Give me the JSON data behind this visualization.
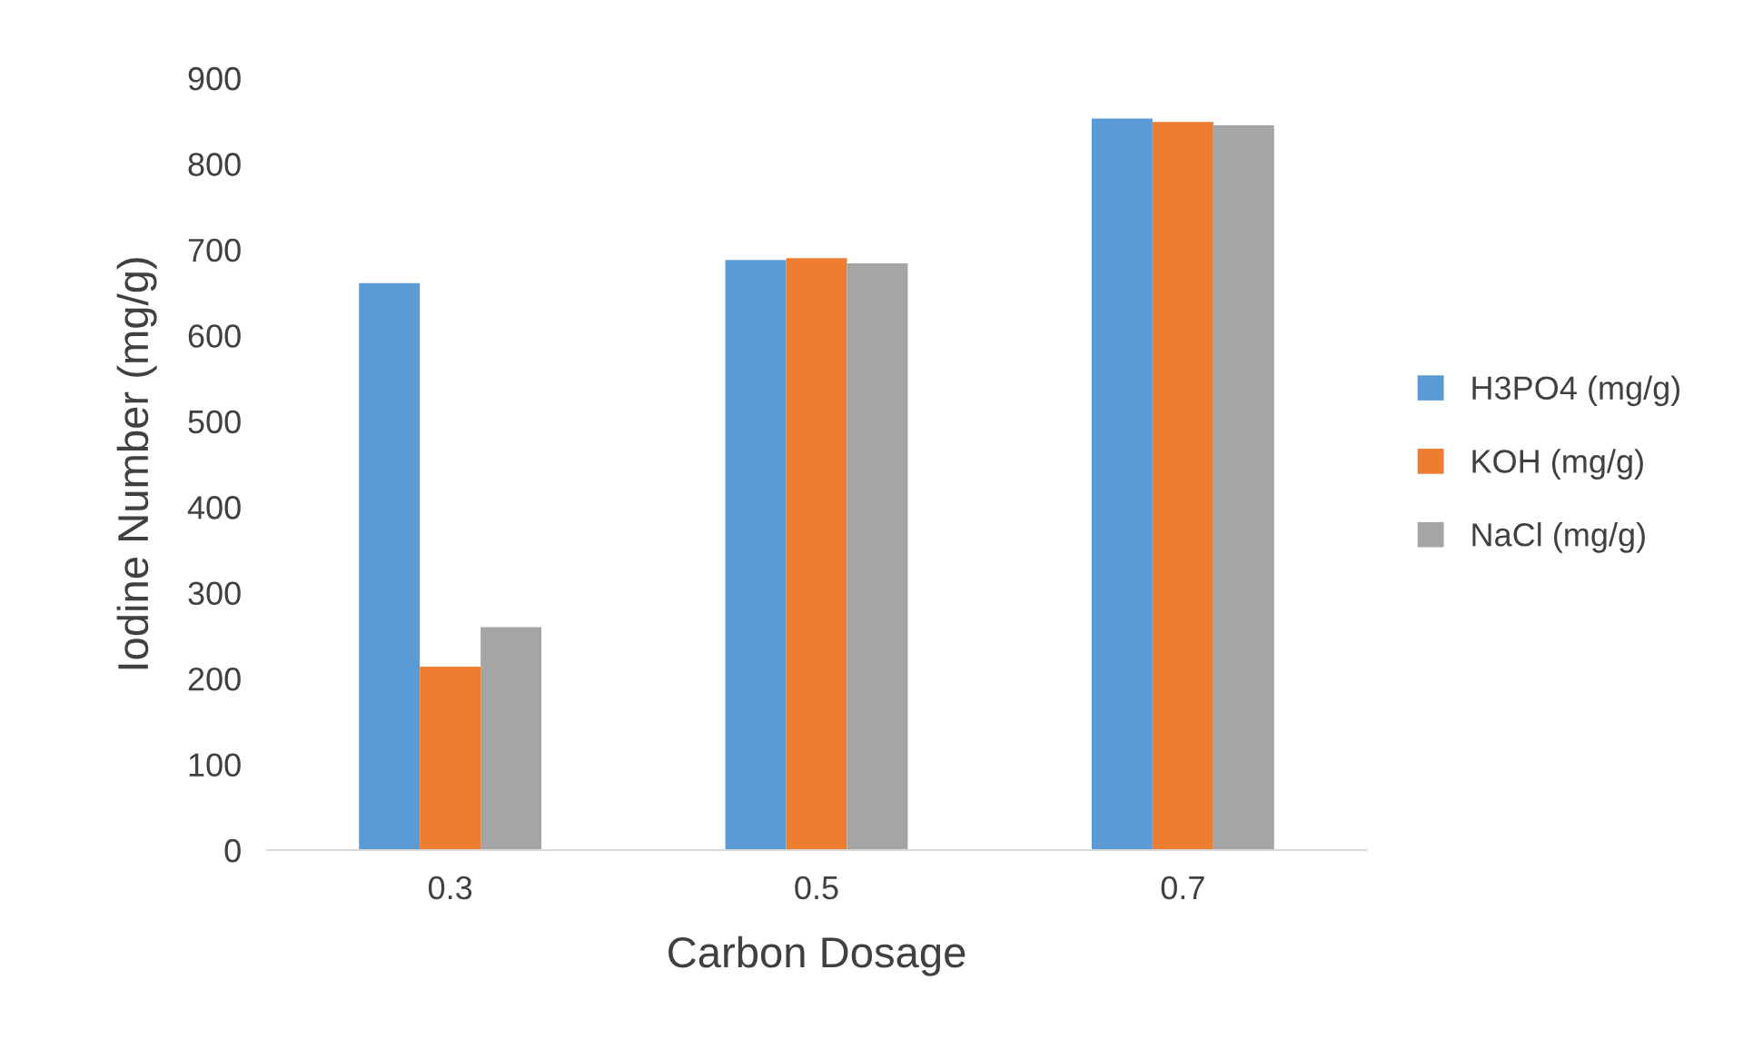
{
  "chart_data": {
    "type": "bar",
    "xlabel": "Carbon Dosage",
    "ylabel": "Iodine Number (mg/g)",
    "categories": [
      "0.3",
      "0.5",
      "0.7"
    ],
    "series": [
      {
        "name": "H3PO4 (mg/g)",
        "color": "#5b9bd5",
        "values": [
          661,
          688,
          853
        ]
      },
      {
        "name": "KOH (mg/g)",
        "color": "#ed7d31",
        "values": [
          214,
          690,
          849
        ]
      },
      {
        "name": "NaCl (mg/g)",
        "color": "#a5a5a5",
        "values": [
          260,
          684,
          845
        ]
      }
    ],
    "ylim": [
      0,
      900
    ],
    "yticks": [
      0,
      100,
      200,
      300,
      400,
      500,
      600,
      700,
      800,
      900
    ],
    "grid": false,
    "legend": "right"
  }
}
